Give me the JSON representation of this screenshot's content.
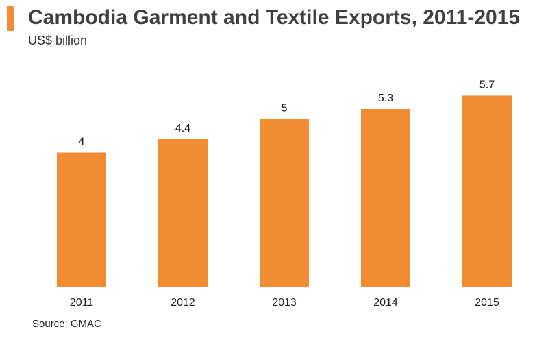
{
  "title": "Cambodia Garment and Textile Exports, 2011-2015",
  "subtitle": "US$ billion",
  "source": "Source: GMAC",
  "colors": {
    "accent": "#F28C33",
    "bar": "#F28C33",
    "axis": "#9B9B9B"
  },
  "chart_data": {
    "type": "bar",
    "categories": [
      "2011",
      "2012",
      "2013",
      "2014",
      "2015"
    ],
    "values": [
      4,
      4.4,
      5,
      5.3,
      5.7
    ],
    "data_labels": [
      "4",
      "4.4",
      "5",
      "5.3",
      "5.7"
    ],
    "title": "Cambodia Garment and Textile Exports, 2011-2015",
    "ylabel": "US$ billion",
    "xlabel": "",
    "ylim": [
      0,
      6.2
    ],
    "grid": false,
    "legend": "none"
  }
}
